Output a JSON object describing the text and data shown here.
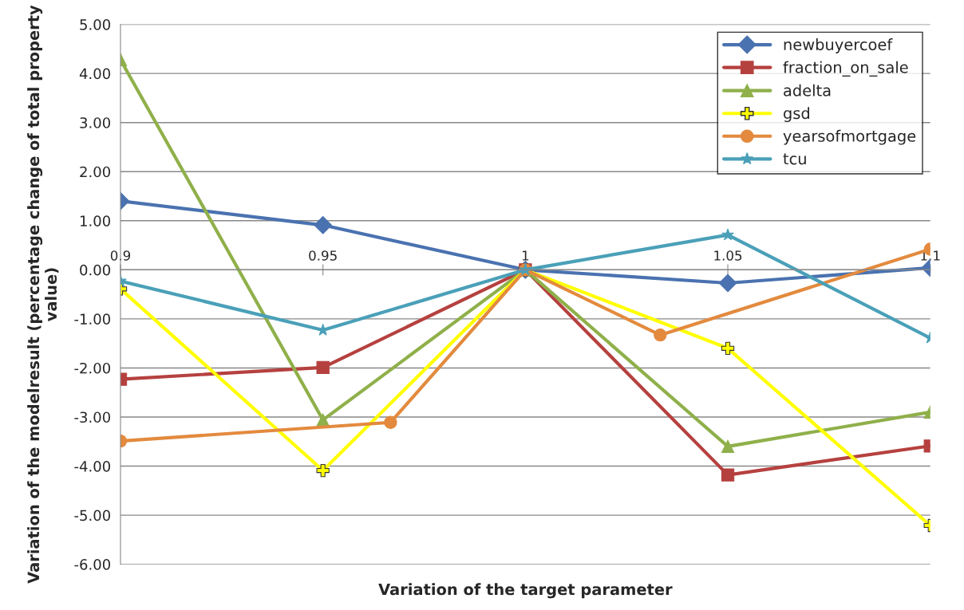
{
  "chart_data": {
    "type": "line",
    "xlabel": "Variation of the target parameter",
    "ylabel": "Variation of the modelresult (percentage change of total property value)",
    "xlim": [
      0.9,
      1.1
    ],
    "xticks": [
      0.9,
      0.95,
      1,
      1.05,
      1.1
    ],
    "ylim": [
      -6,
      5
    ],
    "yticks": [
      {
        "value": 5,
        "label": "5.00"
      },
      {
        "value": 4,
        "label": "4.00"
      },
      {
        "value": 3,
        "label": "3.00"
      },
      {
        "value": 2,
        "label": "2.00"
      },
      {
        "value": 1,
        "label": "1.00"
      },
      {
        "value": 0,
        "label": "0.00"
      },
      {
        "value": -1,
        "label": "-1.00"
      },
      {
        "value": -2,
        "label": "-2.00"
      },
      {
        "value": -3,
        "label": "-3.00"
      },
      {
        "value": -4,
        "label": "-4.00"
      },
      {
        "value": -5,
        "label": "-5.00"
      },
      {
        "value": -6,
        "label": "-6.00"
      }
    ],
    "grid": "y",
    "legend": "top right",
    "line_style": "solid",
    "series": [
      {
        "name": "newbuyercoef",
        "color": "#4a72b0",
        "marker": "diamond",
        "x": [
          0.9,
          0.95,
          1,
          1.05,
          1.1
        ],
        "values": [
          1.4,
          0.91,
          0,
          -0.27,
          0.04
        ]
      },
      {
        "name": "fraction_on_sale",
        "color": "#b5413f",
        "marker": "square",
        "x": [
          0.9,
          0.95,
          1,
          1.05,
          1.1
        ],
        "values": [
          -2.23,
          -1.99,
          0,
          -4.18,
          -3.59
        ]
      },
      {
        "name": "adelta",
        "color": "#8fb04a",
        "marker": "triangle",
        "x": [
          0.9,
          0.95,
          1,
          1.05,
          1.1
        ],
        "values": [
          4.28,
          -3.06,
          0,
          -3.6,
          -2.9
        ]
      },
      {
        "name": "gsd",
        "color": "#ffff00",
        "marker": "cross",
        "x": [
          0.9,
          0.95,
          1,
          1.05,
          1.1
        ],
        "values": [
          -0.39,
          -4.09,
          0,
          -1.6,
          -5.21
        ]
      },
      {
        "name": "yearsofmortgage",
        "color": "#e38a3e",
        "marker": "circle",
        "x": [
          0.9,
          0.9667,
          1,
          1.0333,
          1.1
        ],
        "values": [
          -3.49,
          -3.11,
          0,
          -1.33,
          0.42
        ]
      },
      {
        "name": "tcu",
        "color": "#4aa0b8",
        "marker": "star",
        "x": [
          0.9,
          0.95,
          1,
          1.05,
          1.1
        ],
        "values": [
          -0.23,
          -1.23,
          0,
          0.71,
          -1.39
        ]
      }
    ]
  }
}
